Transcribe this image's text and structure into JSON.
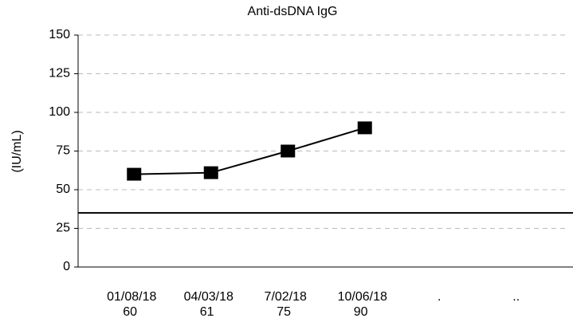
{
  "chart_data": {
    "type": "line",
    "title": "Anti-dsDNA IgG",
    "y_label": "(IU/mL)",
    "categories": [
      "01/08/18",
      "04/03/18",
      "7/02/18",
      "10/06/18",
      ".",
      ".."
    ],
    "values": [
      60,
      61,
      75,
      90,
      null,
      null
    ],
    "color": "#000000",
    "reference_line": 35,
    "ylim": [
      0,
      150
    ],
    "yticks": [
      0,
      25,
      50,
      75,
      100,
      125,
      150
    ],
    "grid": true
  }
}
